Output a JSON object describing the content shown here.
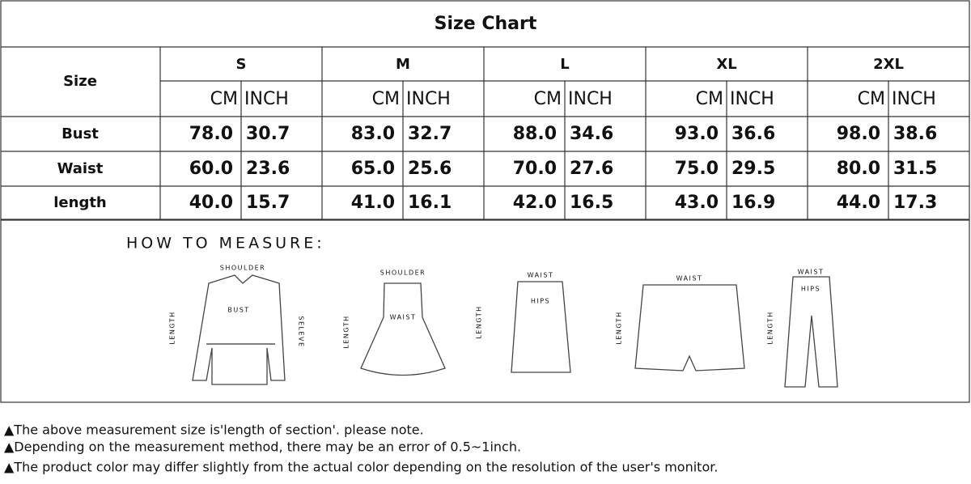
{
  "header": {
    "title": "Size Chart"
  },
  "table": {
    "row_header": "Size",
    "sizes": [
      "S",
      "M",
      "L",
      "XL",
      "2XL"
    ],
    "units": [
      "CM",
      "INCH"
    ],
    "rows": [
      {
        "label": "Bust",
        "values": [
          [
            "78.0",
            "30.7"
          ],
          [
            "83.0",
            "32.7"
          ],
          [
            "88.0",
            "34.6"
          ],
          [
            "93.0",
            "36.6"
          ],
          [
            "98.0",
            "38.6"
          ]
        ]
      },
      {
        "label": "Waist",
        "values": [
          [
            "60.0",
            "23.6"
          ],
          [
            "65.0",
            "25.6"
          ],
          [
            "70.0",
            "27.6"
          ],
          [
            "75.0",
            "29.5"
          ],
          [
            "80.0",
            "31.5"
          ]
        ]
      },
      {
        "label": "length",
        "values": [
          [
            "40.0",
            "15.7"
          ],
          [
            "41.0",
            "16.1"
          ],
          [
            "42.0",
            "16.5"
          ],
          [
            "43.0",
            "16.9"
          ],
          [
            "44.0",
            "17.3"
          ]
        ]
      }
    ]
  },
  "measure": {
    "title": "HOW TO MEASURE:",
    "figures": [
      {
        "labels": [
          "SHOULDER",
          "BUST",
          "LENGTH",
          "SELEVE"
        ]
      },
      {
        "labels": [
          "SHOULDER",
          "WAIST",
          "LENGTH"
        ]
      },
      {
        "labels": [
          "WAIST",
          "HIPS",
          "LENGTH"
        ]
      },
      {
        "labels": [
          "WAIST",
          "LENGTH"
        ]
      },
      {
        "labels": [
          "WAIST",
          "HIPS",
          "LENGTH"
        ]
      }
    ]
  },
  "notes": [
    "▲The above measurement size is'length of section'. please note.",
    "▲Depending on the measurement method, there may be an error of 0.5~1inch.",
    "▲The product color may differ slightly from the actual color depending on the resolution of the user's monitor."
  ]
}
